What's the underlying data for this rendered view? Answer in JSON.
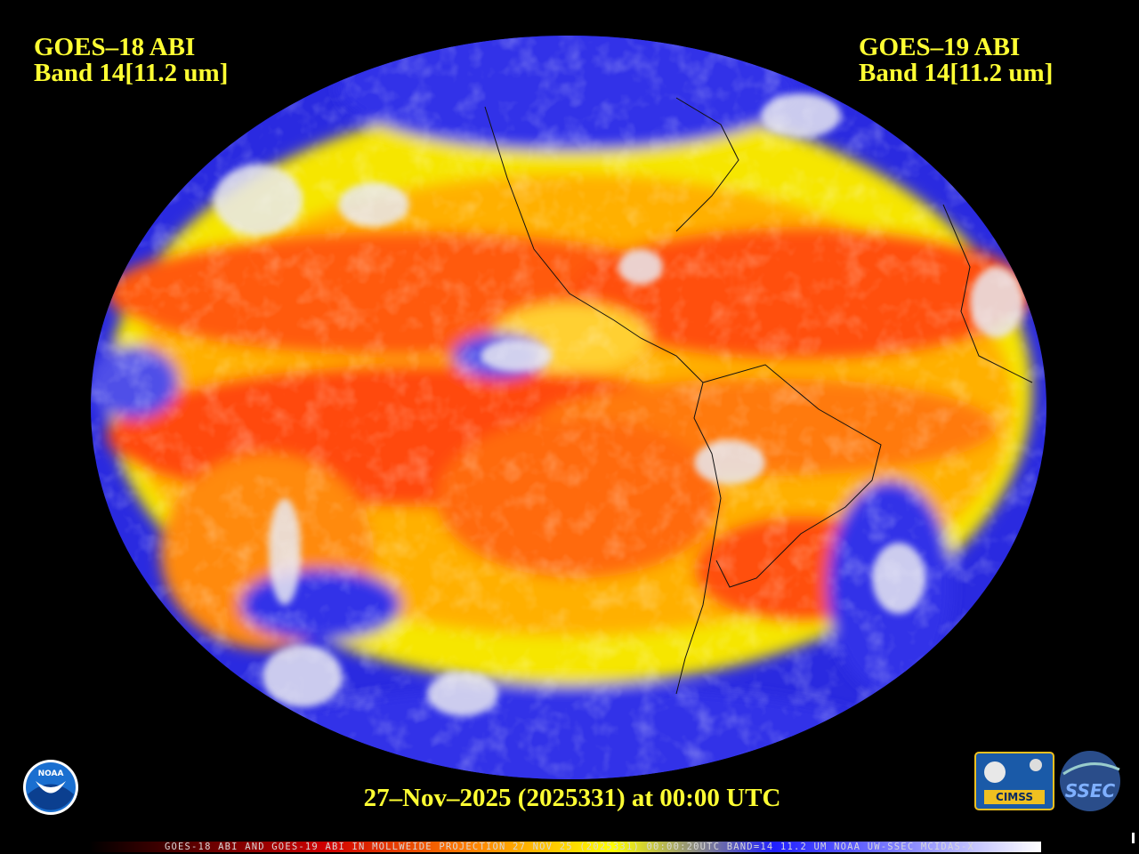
{
  "header": {
    "left": {
      "satellite": "GOES–18 ABI",
      "band": "Band 14[11.2 um]"
    },
    "right": {
      "satellite": "GOES–19 ABI",
      "band": "Band 14[11.2 um]"
    }
  },
  "timestamp": "27–Nov–2025 (2025331) at 00:00 UTC",
  "caption": "GOES-18 ABI AND GOES-19 ABI IN MOLLWEIDE PROJECTION 27 NOV 25 (2025331) 00:00:20UTC BAND=14 11.2 UM NOAA UW-SSEC MCIDAS-X",
  "logos": {
    "noaa": "NOAA",
    "cimss": "CIMSS",
    "ssec": "SSEC"
  }
}
